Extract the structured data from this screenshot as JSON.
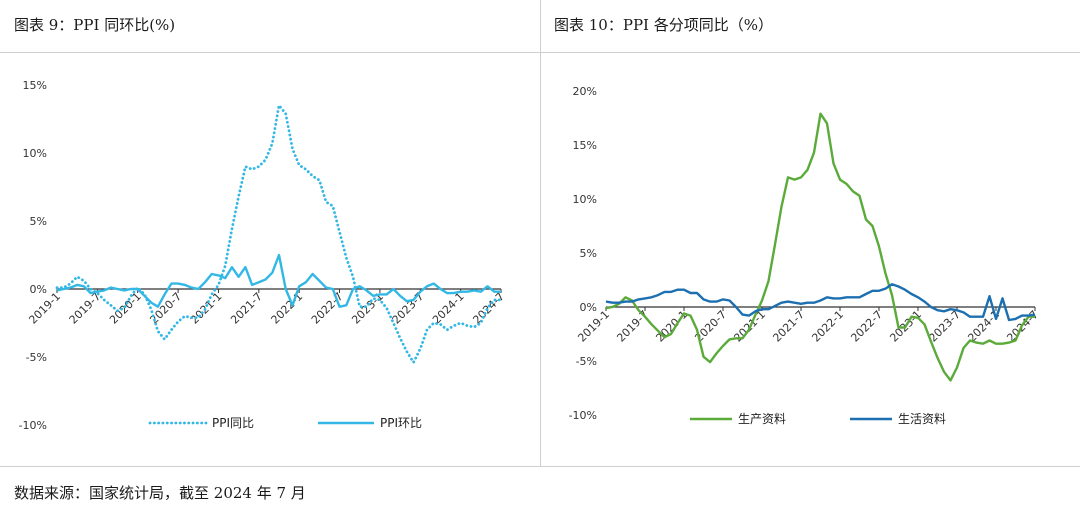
{
  "titles": {
    "left": "图表 9：PPI 同环比(%)",
    "right": "图表 10：PPI 各分项同比（%）"
  },
  "footer": {
    "source": "数据来源：国家统计局，截至 2024 年 7 月"
  },
  "colors": {
    "ppi_yoy": "#33b8e6",
    "ppi_mom": "#33b8e6",
    "production": "#5aab3a",
    "living": "#1c6fb0",
    "axis": "#333333"
  },
  "chart_data": [
    {
      "type": "line",
      "title": "图表 9：PPI 同环比(%)",
      "x": [
        "2019-1",
        "2019-2",
        "2019-3",
        "2019-4",
        "2019-5",
        "2019-6",
        "2019-7",
        "2019-8",
        "2019-9",
        "2019-10",
        "2019-11",
        "2019-12",
        "2020-1",
        "2020-2",
        "2020-3",
        "2020-4",
        "2020-5",
        "2020-6",
        "2020-7",
        "2020-8",
        "2020-9",
        "2020-10",
        "2020-11",
        "2020-12",
        "2021-1",
        "2021-2",
        "2021-3",
        "2021-4",
        "2021-5",
        "2021-6",
        "2021-7",
        "2021-8",
        "2021-9",
        "2021-10",
        "2021-11",
        "2021-12",
        "2022-1",
        "2022-2",
        "2022-3",
        "2022-4",
        "2022-5",
        "2022-6",
        "2022-7",
        "2022-8",
        "2022-9",
        "2022-10",
        "2022-11",
        "2022-12",
        "2023-1",
        "2023-2",
        "2023-3",
        "2023-4",
        "2023-5",
        "2023-6",
        "2023-7",
        "2023-8",
        "2023-9",
        "2023-10",
        "2023-11",
        "2023-12",
        "2024-1",
        "2024-2",
        "2024-3",
        "2024-4",
        "2024-5",
        "2024-6",
        "2024-7"
      ],
      "tick_labels": [
        "2019-1",
        "2019-7",
        "2020-1",
        "2020-7",
        "2021-1",
        "2021-7",
        "2022-1",
        "2022-7",
        "2023-1",
        "2023-7",
        "2024-1",
        "2024-7"
      ],
      "ylim": [
        -10,
        15
      ],
      "yticks": [
        -10,
        -5,
        0,
        5,
        10,
        15
      ],
      "ytick_labels": [
        "-10%",
        "-5%",
        "0%",
        "5%",
        "10%",
        "15%"
      ],
      "legend_position": "bottom",
      "series": [
        {
          "name": "PPI同比",
          "style": "dotted",
          "values": [
            0.1,
            0.1,
            0.4,
            0.9,
            0.6,
            0.0,
            -0.3,
            -0.8,
            -1.2,
            -1.6,
            -1.4,
            -0.5,
            0.1,
            -0.4,
            -1.5,
            -3.1,
            -3.7,
            -3.0,
            -2.4,
            -2.0,
            -2.1,
            -2.1,
            -1.5,
            -0.4,
            0.3,
            1.7,
            4.4,
            6.8,
            9.0,
            8.8,
            9.0,
            9.5,
            10.7,
            13.5,
            12.9,
            10.3,
            9.1,
            8.8,
            8.3,
            8.0,
            6.4,
            6.1,
            4.2,
            2.3,
            0.9,
            -1.3,
            -1.3,
            -0.7,
            -0.8,
            -1.4,
            -2.5,
            -3.6,
            -4.6,
            -5.4,
            -4.4,
            -3.0,
            -2.5,
            -2.6,
            -3.0,
            -2.7,
            -2.5,
            -2.7,
            -2.8,
            -2.5,
            -1.4,
            -0.8,
            -0.8
          ]
        },
        {
          "name": "PPI环比",
          "style": "solid",
          "values": [
            -0.1,
            0.0,
            0.1,
            0.3,
            0.2,
            -0.3,
            -0.2,
            -0.1,
            0.1,
            0.0,
            -0.1,
            0.0,
            0.0,
            -0.5,
            -1.0,
            -1.3,
            -0.4,
            0.4,
            0.4,
            0.3,
            0.1,
            0.0,
            0.5,
            1.1,
            1.0,
            0.8,
            1.6,
            0.9,
            1.6,
            0.3,
            0.5,
            0.7,
            1.2,
            2.5,
            0.0,
            -1.2,
            0.2,
            0.5,
            1.1,
            0.6,
            0.1,
            0.0,
            -1.3,
            -1.2,
            0.0,
            0.2,
            -0.1,
            -0.5,
            -0.4,
            -0.4,
            0.0,
            -0.5,
            -0.9,
            -0.8,
            -0.2,
            0.2,
            0.4,
            0.0,
            -0.3,
            -0.3,
            -0.2,
            -0.2,
            -0.1,
            -0.2,
            0.2,
            -0.2,
            -0.2
          ]
        }
      ]
    },
    {
      "type": "line",
      "title": "图表 10：PPI 各分项同比（%）",
      "x": [
        "2019-1",
        "2019-2",
        "2019-3",
        "2019-4",
        "2019-5",
        "2019-6",
        "2019-7",
        "2019-8",
        "2019-9",
        "2019-10",
        "2019-11",
        "2019-12",
        "2020-1",
        "2020-2",
        "2020-3",
        "2020-4",
        "2020-5",
        "2020-6",
        "2020-7",
        "2020-8",
        "2020-9",
        "2020-10",
        "2020-11",
        "2020-12",
        "2021-1",
        "2021-2",
        "2021-3",
        "2021-4",
        "2021-5",
        "2021-6",
        "2021-7",
        "2021-8",
        "2021-9",
        "2021-10",
        "2021-11",
        "2021-12",
        "2022-1",
        "2022-2",
        "2022-3",
        "2022-4",
        "2022-5",
        "2022-6",
        "2022-7",
        "2022-8",
        "2022-9",
        "2022-10",
        "2022-11",
        "2022-12",
        "2023-1",
        "2023-2",
        "2023-3",
        "2023-4",
        "2023-5",
        "2023-6",
        "2023-7",
        "2023-8",
        "2023-9",
        "2023-10",
        "2023-11",
        "2023-12",
        "2024-1",
        "2024-2",
        "2024-3",
        "2024-4",
        "2024-5",
        "2024-6",
        "2024-7"
      ],
      "tick_labels": [
        "2019-1",
        "2019-7",
        "2020-1",
        "2020-7",
        "2021-1",
        "2021-7",
        "2022-1",
        "2022-7",
        "2023-1",
        "2023-7",
        "2024-1",
        "2024-7"
      ],
      "ylim": [
        -10,
        20
      ],
      "yticks": [
        -10,
        -5,
        0,
        5,
        10,
        15,
        20
      ],
      "ytick_labels": [
        "-10%",
        "-5%",
        "0%",
        "5%",
        "10%",
        "15%",
        "20%"
      ],
      "legend_position": "bottom",
      "series": [
        {
          "name": "生产资料",
          "style": "solid",
          "values": [
            -0.1,
            0.0,
            0.3,
            0.9,
            0.6,
            -0.3,
            -0.9,
            -1.6,
            -2.2,
            -2.8,
            -2.5,
            -1.5,
            -0.6,
            -0.8,
            -2.1,
            -4.6,
            -5.1,
            -4.3,
            -3.6,
            -3.0,
            -2.9,
            -2.9,
            -2.1,
            -0.7,
            0.6,
            2.4,
            5.8,
            9.3,
            12.0,
            11.8,
            12.0,
            12.7,
            14.3,
            17.9,
            17.0,
            13.3,
            11.8,
            11.4,
            10.7,
            10.3,
            8.1,
            7.5,
            5.6,
            3.1,
            1.1,
            -1.9,
            -1.9,
            -0.9,
            -1.0,
            -1.6,
            -3.2,
            -4.7,
            -6.0,
            -6.8,
            -5.6,
            -3.8,
            -3.1,
            -3.3,
            -3.4,
            -3.1,
            -3.4,
            -3.4,
            -3.3,
            -3.1,
            -1.7,
            -0.9,
            -0.9
          ]
        },
        {
          "name": "生活资料",
          "style": "solid",
          "values": [
            0.5,
            0.4,
            0.4,
            0.5,
            0.5,
            0.7,
            0.8,
            0.9,
            1.1,
            1.4,
            1.4,
            1.6,
            1.6,
            1.3,
            1.3,
            0.7,
            0.5,
            0.5,
            0.7,
            0.6,
            0.0,
            -0.7,
            -0.8,
            -0.4,
            -0.2,
            -0.2,
            0.1,
            0.4,
            0.5,
            0.4,
            0.3,
            0.4,
            0.4,
            0.6,
            0.9,
            0.8,
            0.8,
            0.9,
            0.9,
            0.9,
            1.2,
            1.5,
            1.5,
            1.7,
            2.1,
            1.9,
            1.6,
            1.2,
            0.9,
            0.5,
            0.0,
            -0.3,
            -0.4,
            -0.2,
            -0.3,
            -0.5,
            -0.9,
            -0.9,
            -0.9,
            1.0,
            -1.1,
            0.8,
            -1.2,
            -1.1,
            -0.8,
            -0.8,
            -0.7
          ]
        }
      ]
    }
  ]
}
